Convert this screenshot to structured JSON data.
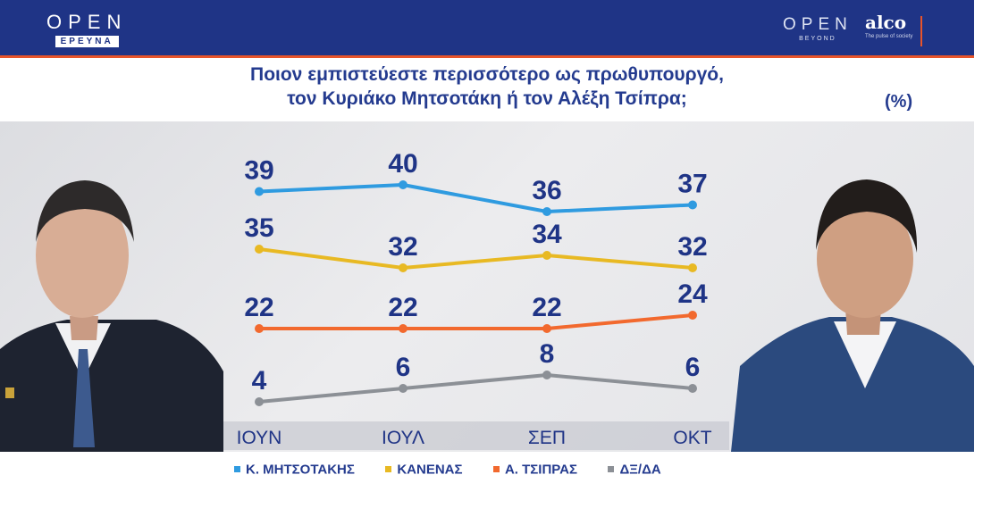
{
  "header": {
    "logo_left": {
      "main": "OPEN",
      "sub": "ΕΡΕΥΝΑ"
    },
    "logo_right": {
      "main": "OPEN",
      "sub": "BEYOND"
    },
    "partner_logo": {
      "main": "alco",
      "sub": "The pulse of society"
    }
  },
  "colors": {
    "header_bg": "#1f3486",
    "accent": "#e8542a",
    "text": "#243b8f"
  },
  "chart_data": {
    "type": "line",
    "title": "Ποιον εμπιστεύεστε περισσότερο ως πρωθυπουργό, τον Κυριάκο Μητσοτάκη ή τον Αλέξη Τσίπρα;",
    "title_lines": [
      "Ποιον εμπιστεύεστε περισσότερο ως πρωθυπουργό,",
      "τον Κυριάκο Μητσοτάκη ή τον Αλέξη Τσίπρα;"
    ],
    "unit_label": "(%)",
    "categories": [
      "ΙΟΥΝ",
      "ΙΟΥΛ",
      "ΣΕΠ",
      "ΟΚΤ"
    ],
    "series": [
      {
        "name": "Κ. ΜΗΤΣΟΤΑΚΗΣ",
        "color": "#2f9be0",
        "values": [
          39,
          40,
          36,
          37
        ]
      },
      {
        "name": "ΚΑΝΕΝΑΣ",
        "color": "#e8b923",
        "values": [
          35,
          32,
          34,
          32
        ]
      },
      {
        "name": "Α. ΤΣΙΠΡΑΣ",
        "color": "#f2692e",
        "values": [
          22,
          22,
          22,
          24
        ]
      },
      {
        "name": "ΔΞ/ΔΑ",
        "color": "#8c9096",
        "values": [
          4,
          6,
          8,
          6
        ]
      }
    ],
    "ylim": [
      0,
      45
    ],
    "grid": false,
    "data_labels": true,
    "legend_position": "bottom"
  }
}
